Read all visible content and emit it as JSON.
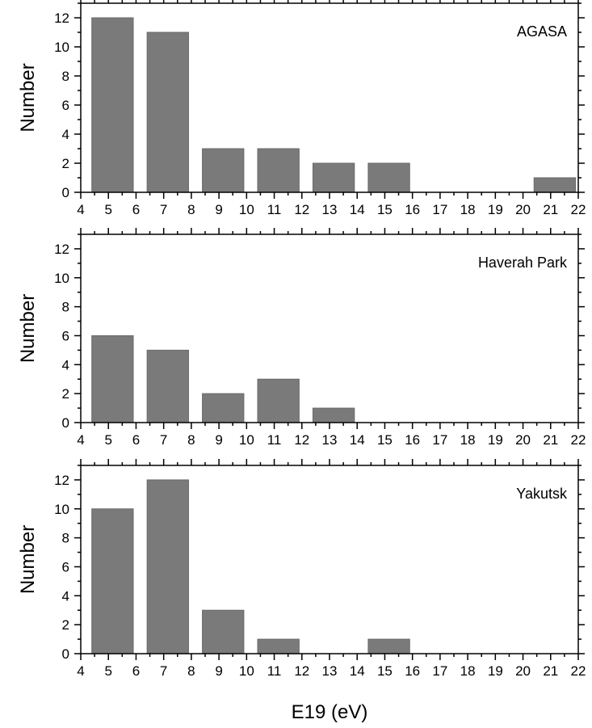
{
  "colors": {
    "bar": "#7a7a7a",
    "bar_edge": "#6a6a6a",
    "axis": "#000000",
    "background": "#ffffff"
  },
  "chart_data": [
    {
      "type": "bar",
      "label": "AGASA",
      "bins": [
        [
          4.4,
          5.9
        ],
        [
          6.4,
          7.9
        ],
        [
          8.4,
          9.9
        ],
        [
          10.4,
          11.9
        ],
        [
          12.4,
          13.9
        ],
        [
          14.4,
          15.9
        ],
        [
          20.4,
          21.9
        ]
      ],
      "values": [
        12,
        11,
        3,
        3,
        2,
        2,
        1
      ],
      "xlim": [
        4,
        22
      ],
      "ylim": [
        0,
        13
      ],
      "xticks": [
        4,
        5,
        6,
        7,
        8,
        9,
        10,
        11,
        12,
        13,
        14,
        15,
        16,
        17,
        18,
        19,
        20,
        21,
        22
      ],
      "yticks": [
        0,
        2,
        4,
        6,
        8,
        10,
        12
      ],
      "ylabel": "Number",
      "xlabel": "",
      "legend_position": "top-right"
    },
    {
      "type": "bar",
      "label": "Haverah Park",
      "bins": [
        [
          4.4,
          5.9
        ],
        [
          6.4,
          7.9
        ],
        [
          8.4,
          9.9
        ],
        [
          10.4,
          11.9
        ],
        [
          12.4,
          13.9
        ]
      ],
      "values": [
        6,
        5,
        2,
        3,
        1
      ],
      "xlim": [
        4,
        22
      ],
      "ylim": [
        0,
        13
      ],
      "xticks": [
        4,
        5,
        6,
        7,
        8,
        9,
        10,
        11,
        12,
        13,
        14,
        15,
        16,
        17,
        18,
        19,
        20,
        21,
        22
      ],
      "yticks": [
        0,
        2,
        4,
        6,
        8,
        10,
        12
      ],
      "ylabel": "Number",
      "xlabel": "",
      "legend_position": "top-right"
    },
    {
      "type": "bar",
      "label": "Yakutsk",
      "bins": [
        [
          4.4,
          5.9
        ],
        [
          6.4,
          7.9
        ],
        [
          8.4,
          9.9
        ],
        [
          10.4,
          11.9
        ],
        [
          14.4,
          15.9
        ]
      ],
      "values": [
        10,
        12,
        3,
        1,
        1
      ],
      "xlim": [
        4,
        22
      ],
      "ylim": [
        0,
        13
      ],
      "xticks": [
        4,
        5,
        6,
        7,
        8,
        9,
        10,
        11,
        12,
        13,
        14,
        15,
        16,
        17,
        18,
        19,
        20,
        21,
        22
      ],
      "yticks": [
        0,
        2,
        4,
        6,
        8,
        10,
        12
      ],
      "ylabel": "Number",
      "xlabel": "E19 (eV)",
      "legend_position": "top-right"
    }
  ]
}
